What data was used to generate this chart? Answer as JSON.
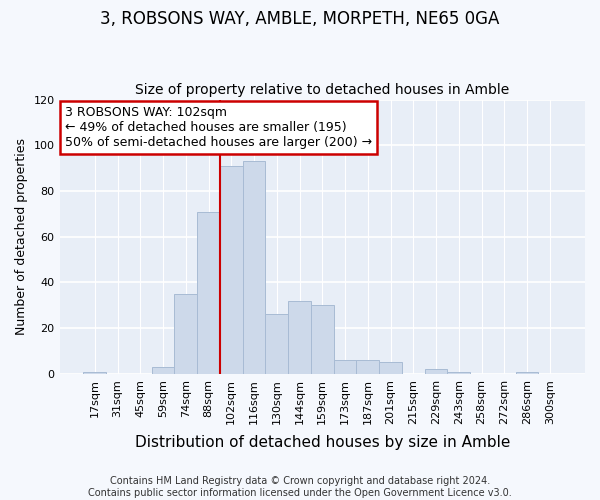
{
  "title": "3, ROBSONS WAY, AMBLE, MORPETH, NE65 0GA",
  "subtitle": "Size of property relative to detached houses in Amble",
  "xlabel": "Distribution of detached houses by size in Amble",
  "ylabel": "Number of detached properties",
  "bar_labels": [
    "17sqm",
    "31sqm",
    "45sqm",
    "59sqm",
    "74sqm",
    "88sqm",
    "102sqm",
    "116sqm",
    "130sqm",
    "144sqm",
    "159sqm",
    "173sqm",
    "187sqm",
    "201sqm",
    "215sqm",
    "229sqm",
    "243sqm",
    "258sqm",
    "272sqm",
    "286sqm",
    "300sqm"
  ],
  "bar_values": [
    1,
    0,
    0,
    3,
    35,
    71,
    91,
    93,
    26,
    32,
    30,
    6,
    6,
    5,
    0,
    2,
    1,
    0,
    0,
    1,
    0
  ],
  "bar_color": "#cdd9ea",
  "bar_edge_color": "#a8bbd4",
  "vline_x_index": 6,
  "vline_color": "#cc0000",
  "annotation_text": "3 ROBSONS WAY: 102sqm\n← 49% of detached houses are smaller (195)\n50% of semi-detached houses are larger (200) →",
  "annotation_box_color": "white",
  "annotation_box_edge_color": "#cc0000",
  "ylim": [
    0,
    120
  ],
  "yticks": [
    0,
    20,
    40,
    60,
    80,
    100,
    120
  ],
  "footer": "Contains HM Land Registry data © Crown copyright and database right 2024.\nContains public sector information licensed under the Open Government Licence v3.0.",
  "plot_bg_color": "#e8eef7",
  "fig_bg_color": "#f5f8fd",
  "grid_color": "#ffffff",
  "title_fontsize": 12,
  "subtitle_fontsize": 10,
  "xlabel_fontsize": 11,
  "ylabel_fontsize": 9,
  "tick_fontsize": 8,
  "annotation_fontsize": 9,
  "footer_fontsize": 7
}
